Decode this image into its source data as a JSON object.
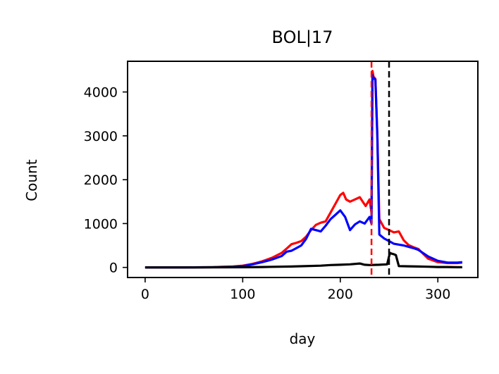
{
  "chart_data": {
    "type": "line",
    "title": "BOL|17",
    "xlabel": "day",
    "ylabel": "Count",
    "xlim": [
      -18,
      341
    ],
    "ylim": [
      -230,
      4700
    ],
    "xticks": [
      0,
      100,
      200,
      300
    ],
    "yticks": [
      0,
      1000,
      2000,
      3000,
      4000
    ],
    "grid": false,
    "legend": "none",
    "series": [
      {
        "color": "#ff0000",
        "x": [
          0,
          40,
          70,
          80,
          90,
          100,
          110,
          120,
          130,
          140,
          145,
          150,
          155,
          160,
          165,
          170,
          175,
          180,
          185,
          190,
          195,
          200,
          203,
          206,
          210,
          215,
          220,
          223,
          226,
          230,
          232,
          233,
          234,
          236,
          238,
          240,
          245,
          250,
          255,
          260,
          265,
          270,
          275,
          280,
          290,
          300,
          310,
          320,
          325
        ],
        "y": [
          0,
          0,
          5,
          15,
          20,
          40,
          80,
          140,
          220,
          330,
          430,
          530,
          560,
          600,
          700,
          850,
          970,
          1020,
          1050,
          1250,
          1450,
          1650,
          1700,
          1550,
          1500,
          1550,
          1600,
          1500,
          1400,
          1550,
          1250,
          4480,
          4350,
          4300,
          3000,
          1100,
          900,
          850,
          800,
          820,
          620,
          510,
          460,
          420,
          200,
          120,
          100,
          100,
          110
        ]
      },
      {
        "color": "#0000ff",
        "x": [
          0,
          40,
          70,
          80,
          90,
          100,
          110,
          120,
          130,
          140,
          145,
          150,
          155,
          160,
          165,
          170,
          175,
          180,
          185,
          190,
          195,
          200,
          205,
          210,
          215,
          220,
          225,
          230,
          232,
          233,
          234,
          236,
          238,
          240,
          245,
          250,
          255,
          260,
          265,
          270,
          275,
          280,
          290,
          300,
          310,
          320,
          325
        ],
        "y": [
          0,
          0,
          5,
          10,
          15,
          30,
          70,
          120,
          180,
          260,
          360,
          380,
          440,
          500,
          650,
          880,
          850,
          820,
          950,
          1100,
          1200,
          1300,
          1150,
          850,
          980,
          1050,
          1000,
          1150,
          1000,
          4380,
          4320,
          4280,
          3000,
          750,
          660,
          600,
          540,
          520,
          500,
          470,
          440,
          400,
          250,
          150,
          110,
          110,
          120
        ]
      },
      {
        "color": "#000000",
        "x": [
          0,
          50,
          100,
          120,
          150,
          180,
          190,
          200,
          210,
          220,
          225,
          230,
          240,
          248,
          250,
          251,
          252,
          255,
          257,
          260,
          270,
          280,
          290,
          300,
          310,
          320,
          325
        ],
        "y": [
          0,
          0,
          5,
          10,
          20,
          40,
          55,
          60,
          70,
          90,
          60,
          55,
          60,
          70,
          250,
          330,
          320,
          300,
          280,
          30,
          25,
          20,
          15,
          10,
          10,
          5,
          5
        ]
      }
    ],
    "vlines": [
      {
        "x": 232,
        "color": "#ff0000",
        "style": "dashed"
      },
      {
        "x": 250,
        "color": "#000000",
        "style": "dashed"
      }
    ]
  }
}
